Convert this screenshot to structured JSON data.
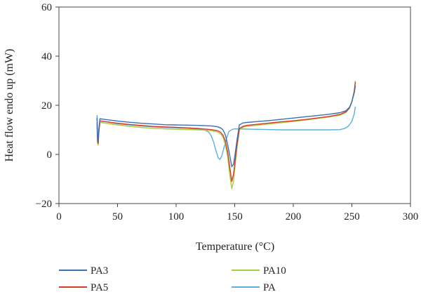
{
  "chart_data": {
    "type": "line",
    "xlabel": "Temperature (°C)",
    "ylabel": "Heat flow endo up (mW)",
    "xlim": [
      0,
      300
    ],
    "ylim": [
      -20,
      60
    ],
    "xticks": [
      0,
      50,
      100,
      150,
      200,
      250,
      300
    ],
    "yticks": [
      -20,
      0,
      20,
      40,
      60
    ],
    "grid": false,
    "legend_position": "bottom",
    "series": [
      {
        "name": "PA3",
        "color": "#3a6fb7",
        "points": [
          [
            32.5,
            15
          ],
          [
            33,
            6
          ],
          [
            33.5,
            5
          ],
          [
            34,
            10
          ],
          [
            35,
            14.5
          ],
          [
            40,
            14.2
          ],
          [
            50,
            13.6
          ],
          [
            60,
            13.1
          ],
          [
            70,
            12.7
          ],
          [
            80,
            12.4
          ],
          [
            90,
            12.1
          ],
          [
            100,
            12
          ],
          [
            110,
            11.9
          ],
          [
            120,
            11.8
          ],
          [
            130,
            11.6
          ],
          [
            135,
            11.3
          ],
          [
            138,
            10.8
          ],
          [
            140,
            10
          ],
          [
            142,
            8
          ],
          [
            144,
            4
          ],
          [
            146,
            -1
          ],
          [
            147.5,
            -5
          ],
          [
            149,
            -4
          ],
          [
            150,
            -1
          ],
          [
            152,
            6
          ],
          [
            154,
            12
          ],
          [
            157,
            12.8
          ],
          [
            160,
            13
          ],
          [
            170,
            13.4
          ],
          [
            180,
            13.8
          ],
          [
            190,
            14.3
          ],
          [
            200,
            14.8
          ],
          [
            210,
            15.3
          ],
          [
            220,
            15.8
          ],
          [
            230,
            16.3
          ],
          [
            240,
            17
          ],
          [
            245,
            17.8
          ],
          [
            248,
            19.2
          ],
          [
            250,
            21.5
          ],
          [
            252,
            25
          ],
          [
            253,
            28
          ]
        ]
      },
      {
        "name": "PA5",
        "color": "#d83a2a",
        "points": [
          [
            32.5,
            13
          ],
          [
            33,
            5
          ],
          [
            33.5,
            4.5
          ],
          [
            34,
            9
          ],
          [
            35,
            13.6
          ],
          [
            40,
            13.3
          ],
          [
            50,
            12.7
          ],
          [
            60,
            12.2
          ],
          [
            70,
            11.8
          ],
          [
            80,
            11.4
          ],
          [
            90,
            11.2
          ],
          [
            100,
            11
          ],
          [
            110,
            10.8
          ],
          [
            120,
            10.5
          ],
          [
            130,
            10.1
          ],
          [
            135,
            9.7
          ],
          [
            138,
            9
          ],
          [
            140,
            7.8
          ],
          [
            142,
            5.5
          ],
          [
            144,
            1
          ],
          [
            146,
            -6
          ],
          [
            147.5,
            -11
          ],
          [
            149,
            -8
          ],
          [
            150,
            -4
          ],
          [
            152,
            4
          ],
          [
            154,
            10.5
          ],
          [
            157,
            11.4
          ],
          [
            160,
            11.8
          ],
          [
            170,
            12.3
          ],
          [
            180,
            12.8
          ],
          [
            190,
            13.3
          ],
          [
            200,
            13.7
          ],
          [
            210,
            14.2
          ],
          [
            220,
            14.8
          ],
          [
            230,
            15.4
          ],
          [
            240,
            16.3
          ],
          [
            245,
            17.4
          ],
          [
            248,
            19
          ],
          [
            250,
            21.5
          ],
          [
            252,
            25.5
          ],
          [
            253,
            29.5
          ]
        ]
      },
      {
        "name": "PA10",
        "color": "#a8cd3e",
        "points": [
          [
            32.5,
            11
          ],
          [
            33,
            4.5
          ],
          [
            33.5,
            3.8
          ],
          [
            34,
            8.5
          ],
          [
            35,
            13
          ],
          [
            40,
            12.7
          ],
          [
            50,
            12
          ],
          [
            60,
            11.4
          ],
          [
            70,
            11
          ],
          [
            80,
            10.6
          ],
          [
            90,
            10.4
          ],
          [
            100,
            10.2
          ],
          [
            110,
            10.1
          ],
          [
            120,
            10
          ],
          [
            130,
            9.7
          ],
          [
            135,
            9.2
          ],
          [
            138,
            8.3
          ],
          [
            140,
            7
          ],
          [
            142,
            4
          ],
          [
            144,
            -1
          ],
          [
            146,
            -9
          ],
          [
            147.5,
            -14
          ],
          [
            149,
            -11
          ],
          [
            150,
            -6
          ],
          [
            152,
            3
          ],
          [
            154,
            10
          ],
          [
            157,
            11
          ],
          [
            160,
            11.4
          ],
          [
            170,
            11.9
          ],
          [
            180,
            12.4
          ],
          [
            190,
            12.9
          ],
          [
            200,
            13.4
          ],
          [
            210,
            14
          ],
          [
            220,
            14.6
          ],
          [
            230,
            15.2
          ],
          [
            240,
            16
          ],
          [
            245,
            17
          ],
          [
            248,
            18.8
          ],
          [
            250,
            21.5
          ],
          [
            252,
            26
          ],
          [
            253,
            30
          ]
        ]
      },
      {
        "name": "PA",
        "color": "#5ab0dc",
        "points": [
          [
            32.5,
            16
          ],
          [
            33,
            8
          ],
          [
            33.5,
            6
          ],
          [
            34,
            10
          ],
          [
            35,
            13.7
          ],
          [
            40,
            13.3
          ],
          [
            50,
            12.5
          ],
          [
            60,
            12
          ],
          [
            70,
            11.6
          ],
          [
            80,
            11.2
          ],
          [
            90,
            11
          ],
          [
            100,
            10.8
          ],
          [
            110,
            10.6
          ],
          [
            120,
            10.2
          ],
          [
            125,
            9.8
          ],
          [
            128,
            9
          ],
          [
            130,
            7.5
          ],
          [
            132,
            5
          ],
          [
            134,
            1.5
          ],
          [
            136,
            -1.5
          ],
          [
            137.5,
            -2
          ],
          [
            139,
            -0.5
          ],
          [
            141,
            3
          ],
          [
            143,
            6.5
          ],
          [
            145,
            9.3
          ],
          [
            148,
            10.2
          ],
          [
            150,
            10.4
          ],
          [
            160,
            10.3
          ],
          [
            170,
            10.2
          ],
          [
            180,
            10.1
          ],
          [
            190,
            10
          ],
          [
            200,
            10
          ],
          [
            210,
            10
          ],
          [
            220,
            10
          ],
          [
            230,
            10
          ],
          [
            240,
            10.1
          ],
          [
            244,
            10.6
          ],
          [
            247,
            11.5
          ],
          [
            250,
            13.5
          ],
          [
            252,
            16.5
          ],
          [
            253,
            19.5
          ]
        ]
      }
    ]
  }
}
